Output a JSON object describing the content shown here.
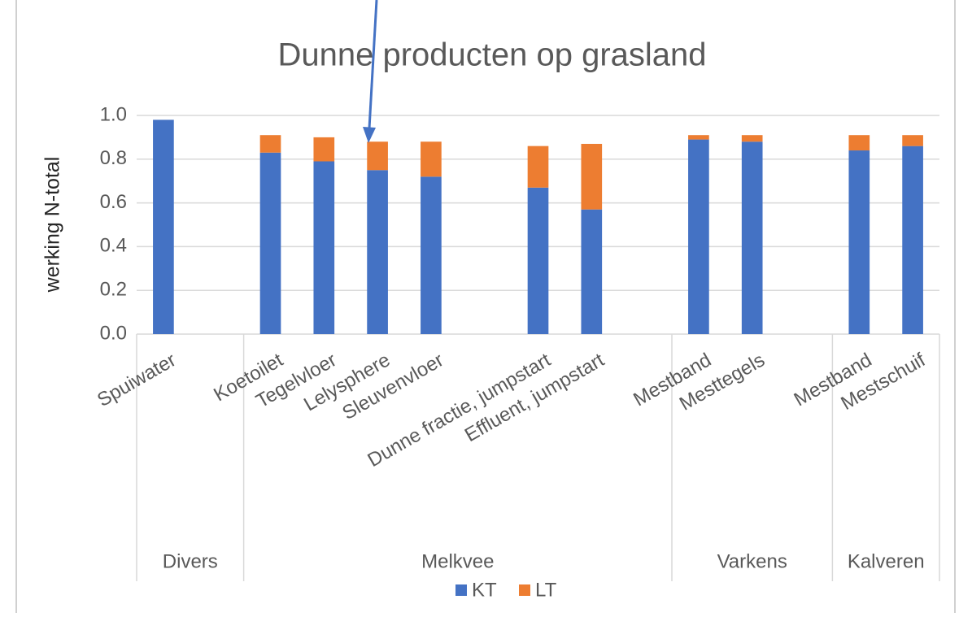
{
  "chart_data": {
    "type": "stacked_bar",
    "title": "Dunne producten op grasland",
    "y_label": "werking N-total",
    "categories": [
      "Spuiwater",
      null,
      "Koetoilet",
      "Tegelvloer",
      "Lelysphere",
      "Sleuvenvloer",
      null,
      "Dunne fractie, jumpstart",
      "Effluent, jumpstart",
      null,
      "Mestband",
      "Mesttegels",
      null,
      "Mestband",
      "Mestschuif"
    ],
    "groups": [
      {
        "name": "Divers",
        "span": 2
      },
      {
        "name": "Melkvee",
        "span": 8
      },
      {
        "name": "Varkens",
        "span": 3
      },
      {
        "name": "Kalveren",
        "span": 2
      }
    ],
    "series": [
      {
        "name": "KT",
        "color": "#4472c4",
        "values": [
          0.98,
          null,
          0.83,
          0.79,
          0.75,
          0.72,
          null,
          0.67,
          0.57,
          null,
          0.89,
          0.88,
          null,
          0.84,
          0.86
        ]
      },
      {
        "name": "LT",
        "color": "#ed7d31",
        "values": [
          null,
          null,
          0.08,
          0.11,
          0.13,
          0.16,
          null,
          0.19,
          0.3,
          null,
          0.02,
          0.03,
          null,
          0.07,
          0.05
        ]
      }
    ],
    "ylim": [
      0,
      1.0
    ],
    "yticks": [
      {
        "value": 0,
        "label": "0.0"
      },
      0.2,
      0.4,
      0.6,
      0.8,
      {
        "value": 1.0,
        "label": "1.0"
      }
    ],
    "grid": true,
    "legend": "bottom"
  }
}
